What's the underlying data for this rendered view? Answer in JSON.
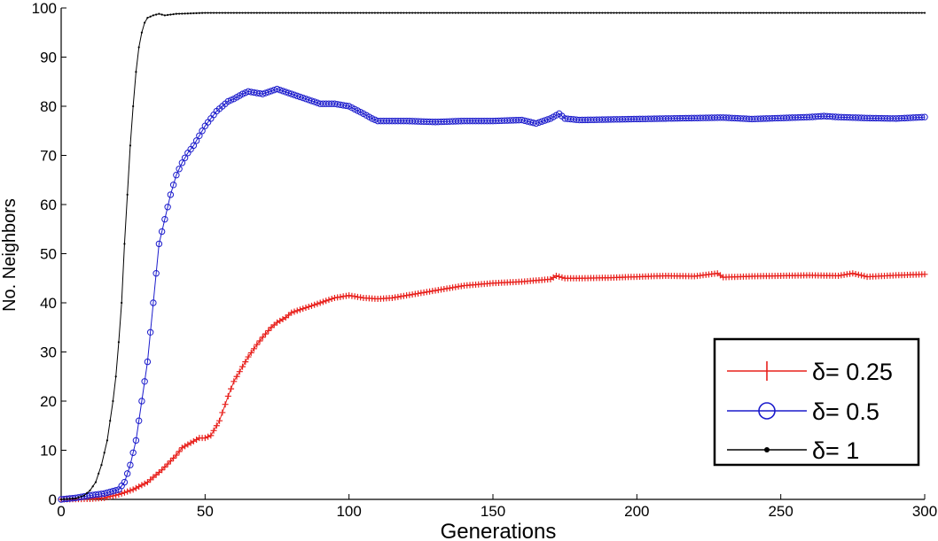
{
  "chart_data": {
    "type": "line",
    "xlabel": "Generations",
    "ylabel": "No. Neighbors",
    "xlim": [
      0,
      300
    ],
    "ylim": [
      0,
      100
    ],
    "xticks": [
      "0",
      "50",
      "100",
      "150",
      "200",
      "250",
      "300"
    ],
    "yticks": [
      "0",
      "10",
      "20",
      "30",
      "40",
      "50",
      "60",
      "70",
      "80",
      "90",
      "100"
    ],
    "grid": false,
    "legend_position": "bottom-right",
    "series": [
      {
        "name": "δ= 0.25",
        "color": "#e8201c",
        "marker": "plus",
        "x": [
          0,
          10,
          15,
          20,
          25,
          30,
          35,
          40,
          42,
          45,
          48,
          50,
          52,
          55,
          58,
          60,
          63,
          65,
          68,
          70,
          73,
          75,
          78,
          80,
          85,
          90,
          95,
          100,
          105,
          110,
          115,
          120,
          130,
          140,
          150,
          160,
          170,
          172,
          175,
          180,
          190,
          200,
          210,
          220,
          228,
          230,
          240,
          250,
          260,
          270,
          275,
          280,
          290,
          300
        ],
        "y": [
          0,
          0.1,
          0.3,
          1,
          2,
          3.5,
          6,
          9,
          10.5,
          11.5,
          12.5,
          12.5,
          13,
          16,
          21,
          24,
          27,
          29,
          31.5,
          33,
          35,
          36,
          37,
          38,
          39,
          40,
          41,
          41.5,
          41,
          40.8,
          41,
          41.5,
          42.5,
          43.5,
          44,
          44.3,
          44.8,
          45.5,
          45,
          45,
          45.1,
          45.3,
          45.5,
          45.4,
          46,
          45.2,
          45.4,
          45.5,
          45.6,
          45.5,
          46,
          45.3,
          45.6,
          45.8
        ]
      },
      {
        "name": "δ= 0.5",
        "color": "#1c1ccc",
        "marker": "circle",
        "x": [
          0,
          5,
          10,
          15,
          20,
          22,
          24,
          26,
          28,
          30,
          32,
          34,
          36,
          38,
          40,
          42,
          44,
          46,
          48,
          50,
          52,
          54,
          56,
          58,
          60,
          63,
          65,
          70,
          75,
          80,
          85,
          90,
          95,
          100,
          105,
          108,
          110,
          120,
          130,
          140,
          150,
          160,
          165,
          170,
          173,
          175,
          180,
          190,
          200,
          210,
          220,
          230,
          240,
          250,
          260,
          265,
          270,
          280,
          290,
          300
        ],
        "y": [
          0,
          0.3,
          0.8,
          1.2,
          2,
          3.5,
          7,
          12,
          20,
          28,
          40,
          52,
          57,
          62,
          66,
          68.5,
          70.5,
          72,
          74,
          76,
          77.5,
          79,
          80,
          81,
          81.5,
          82.5,
          83,
          82.5,
          83.5,
          82.5,
          81.5,
          80.5,
          80.5,
          80,
          78.5,
          77.5,
          77,
          77,
          76.8,
          77,
          77,
          77.2,
          76.5,
          77.5,
          78.5,
          77.5,
          77.2,
          77.3,
          77.4,
          77.5,
          77.6,
          77.7,
          77.4,
          77.6,
          77.8,
          78,
          77.8,
          77.6,
          77.5,
          77.8
        ]
      },
      {
        "name": "δ= 1",
        "color": "#000000",
        "marker": "dot",
        "x": [
          0,
          5,
          8,
          10,
          12,
          14,
          16,
          18,
          19,
          20,
          21,
          22,
          23,
          24,
          25,
          26,
          27,
          28,
          29,
          30,
          32,
          34,
          36,
          40,
          50,
          100,
          150,
          200,
          250,
          300
        ],
        "y": [
          0,
          0.2,
          0.8,
          1.8,
          3.5,
          7,
          12,
          20,
          25,
          32,
          40,
          52,
          62,
          72,
          80,
          87,
          92,
          95,
          97,
          98,
          98.5,
          98.8,
          98.5,
          98.8,
          99,
          99,
          99,
          99,
          99,
          99
        ]
      }
    ]
  }
}
